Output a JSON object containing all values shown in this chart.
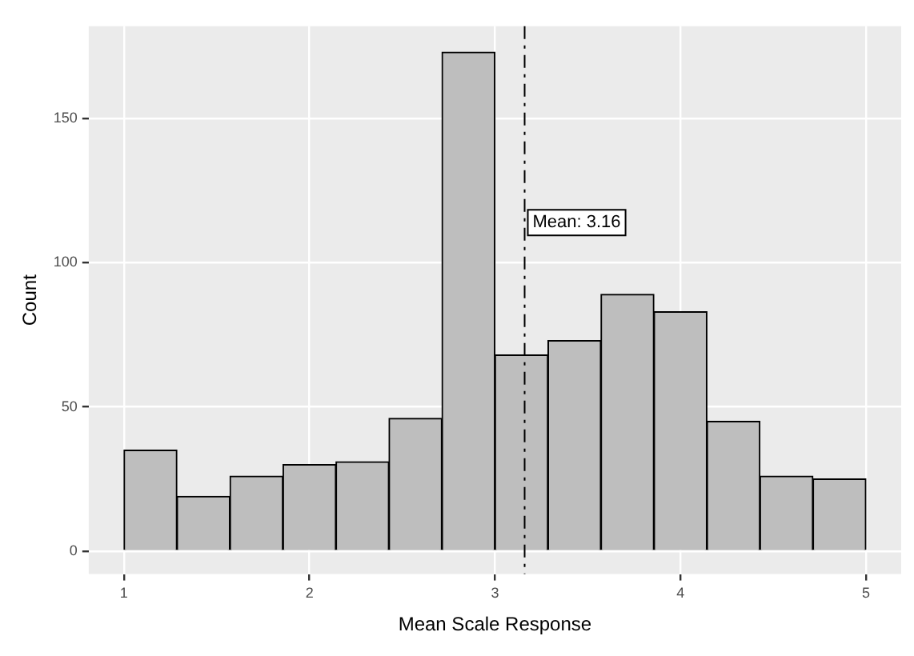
{
  "chart_data": {
    "type": "histogram",
    "xlabel": "Mean Scale Response",
    "ylabel": "Count",
    "bins": [
      1,
      1.2857,
      1.5714,
      1.8571,
      2.1429,
      2.4286,
      2.7143,
      3,
      3.2857,
      3.5714,
      3.8571,
      4.1429,
      4.4286,
      4.7143,
      5
    ],
    "values": [
      35,
      19,
      26,
      30,
      31,
      46,
      173,
      68,
      73,
      89,
      83,
      45,
      26,
      25
    ],
    "color": "#bebebe",
    "xlim": [
      0.81,
      5.19
    ],
    "xticks": [
      1,
      2,
      3,
      4,
      5
    ],
    "ylim": [
      -8,
      182
    ],
    "yticks": [
      0,
      50,
      100,
      150
    ],
    "grid": true,
    "legend": false,
    "ref_lines": [
      {
        "axis": "x",
        "value": 3.16,
        "label": "Mean: 3.16",
        "color": "#000000",
        "line_style": "dashed"
      }
    ]
  }
}
